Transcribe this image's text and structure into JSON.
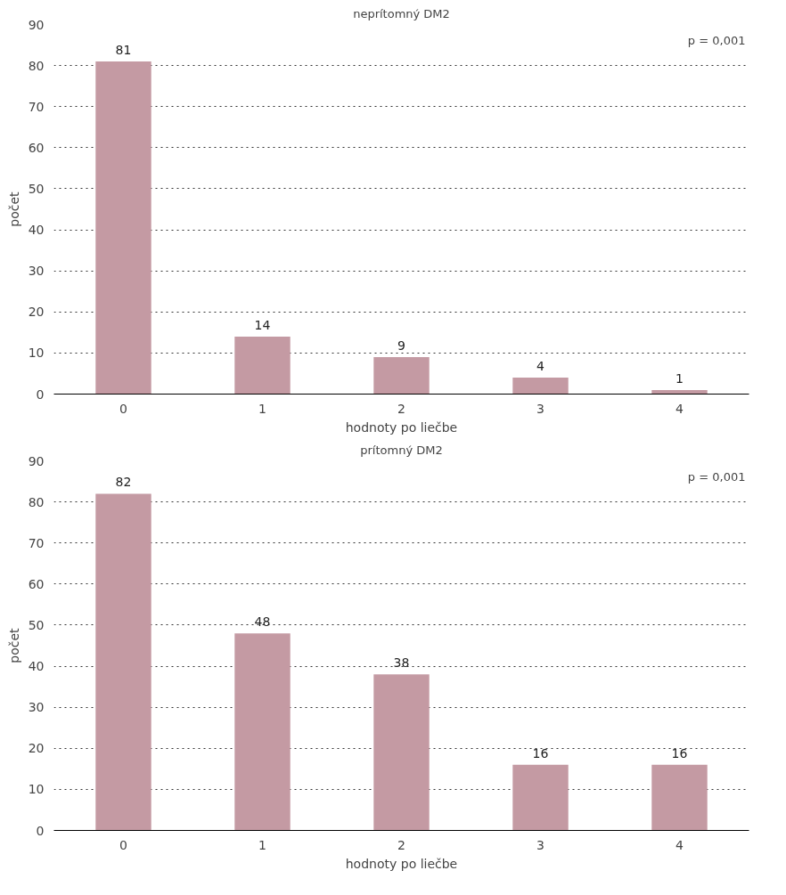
{
  "chart_data": [
    {
      "type": "bar",
      "title": "neprítomný DM2",
      "xlabel": "hodnoty po liečbe",
      "ylabel": "počet",
      "categories": [
        "0",
        "1",
        "2",
        "3",
        "4"
      ],
      "values": [
        81,
        14,
        9,
        4,
        1
      ],
      "color": "#c49aa3",
      "ylim": [
        0,
        90
      ],
      "yticks": [
        0,
        10,
        20,
        30,
        40,
        50,
        60,
        70,
        80,
        90
      ],
      "grid": "y",
      "data_labels": true,
      "annotations": [
        "p = 0,001"
      ]
    },
    {
      "type": "bar",
      "title": "prítomný DM2",
      "xlabel": "hodnoty po liečbe",
      "ylabel": "počet",
      "categories": [
        "0",
        "1",
        "2",
        "3",
        "4"
      ],
      "values": [
        82,
        48,
        38,
        16,
        16
      ],
      "color": "#c49aa3",
      "ylim": [
        0,
        90
      ],
      "yticks": [
        0,
        10,
        20,
        30,
        40,
        50,
        60,
        70,
        80,
        90
      ],
      "grid": "y",
      "data_labels": true,
      "annotations": [
        "p = 0,001"
      ]
    }
  ]
}
